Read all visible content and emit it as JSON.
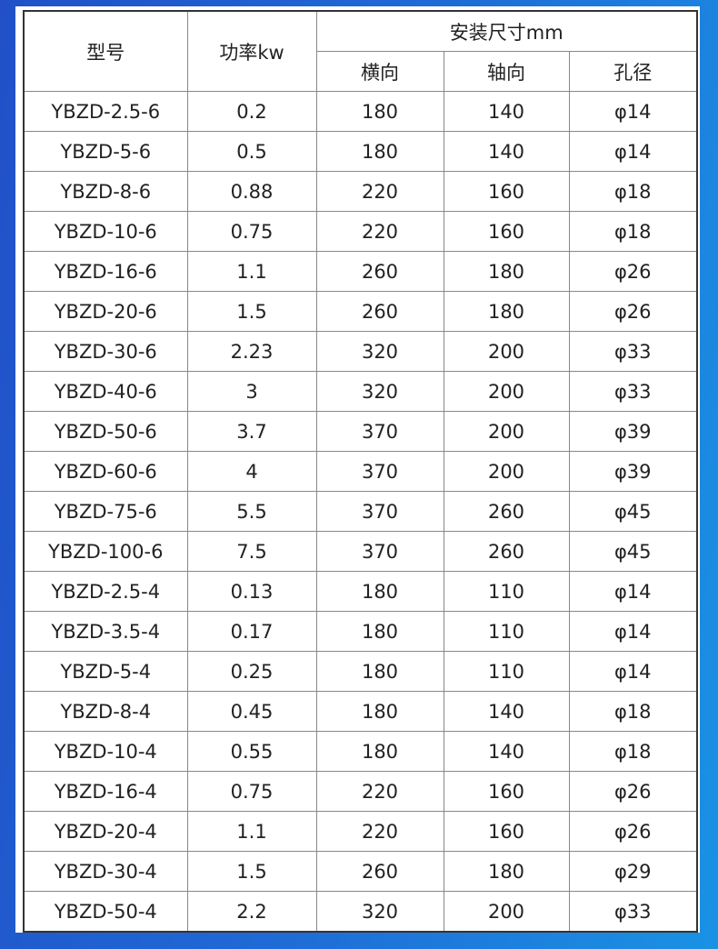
{
  "header": {
    "model": "型号",
    "power": "功率kw",
    "install": "安装尺寸mm",
    "horizontal": "横向",
    "axial": "轴向",
    "hole": "孔径"
  },
  "rows": [
    [
      "YBZD-2.5-6",
      "0.2",
      "180",
      "140",
      "φ14"
    ],
    [
      "YBZD-5-6",
      "0.5",
      "180",
      "140",
      "φ14"
    ],
    [
      "YBZD-8-6",
      "0.88",
      "220",
      "160",
      "φ18"
    ],
    [
      "YBZD-10-6",
      "0.75",
      "220",
      "160",
      "φ18"
    ],
    [
      "YBZD-16-6",
      "1.1",
      "260",
      "180",
      "φ26"
    ],
    [
      "YBZD-20-6",
      "1.5",
      "260",
      "180",
      "φ26"
    ],
    [
      "YBZD-30-6",
      "2.23",
      "320",
      "200",
      "φ33"
    ],
    [
      "YBZD-40-6",
      "3",
      "320",
      "200",
      "φ33"
    ],
    [
      "YBZD-50-6",
      "3.7",
      "370",
      "200",
      "φ39"
    ],
    [
      "YBZD-60-6",
      "4",
      "370",
      "200",
      "φ39"
    ],
    [
      "YBZD-75-6",
      "5.5",
      "370",
      "260",
      "φ45"
    ],
    [
      "YBZD-100-6",
      "7.5",
      "370",
      "260",
      "φ45"
    ],
    [
      "YBZD-2.5-4",
      "0.13",
      "180",
      "110",
      "φ14"
    ],
    [
      "YBZD-3.5-4",
      "0.17",
      "180",
      "110",
      "φ14"
    ],
    [
      "YBZD-5-4",
      "0.25",
      "180",
      "110",
      "φ14"
    ],
    [
      "YBZD-8-4",
      "0.45",
      "180",
      "140",
      "φ18"
    ],
    [
      "YBZD-10-4",
      "0.55",
      "180",
      "140",
      "φ18"
    ],
    [
      "YBZD-16-4",
      "0.75",
      "220",
      "160",
      "φ26"
    ],
    [
      "YBZD-20-4",
      "1.1",
      "220",
      "160",
      "φ26"
    ],
    [
      "YBZD-30-4",
      "1.5",
      "260",
      "180",
      "φ29"
    ],
    [
      "YBZD-50-4",
      "2.2",
      "320",
      "200",
      "φ33"
    ]
  ]
}
